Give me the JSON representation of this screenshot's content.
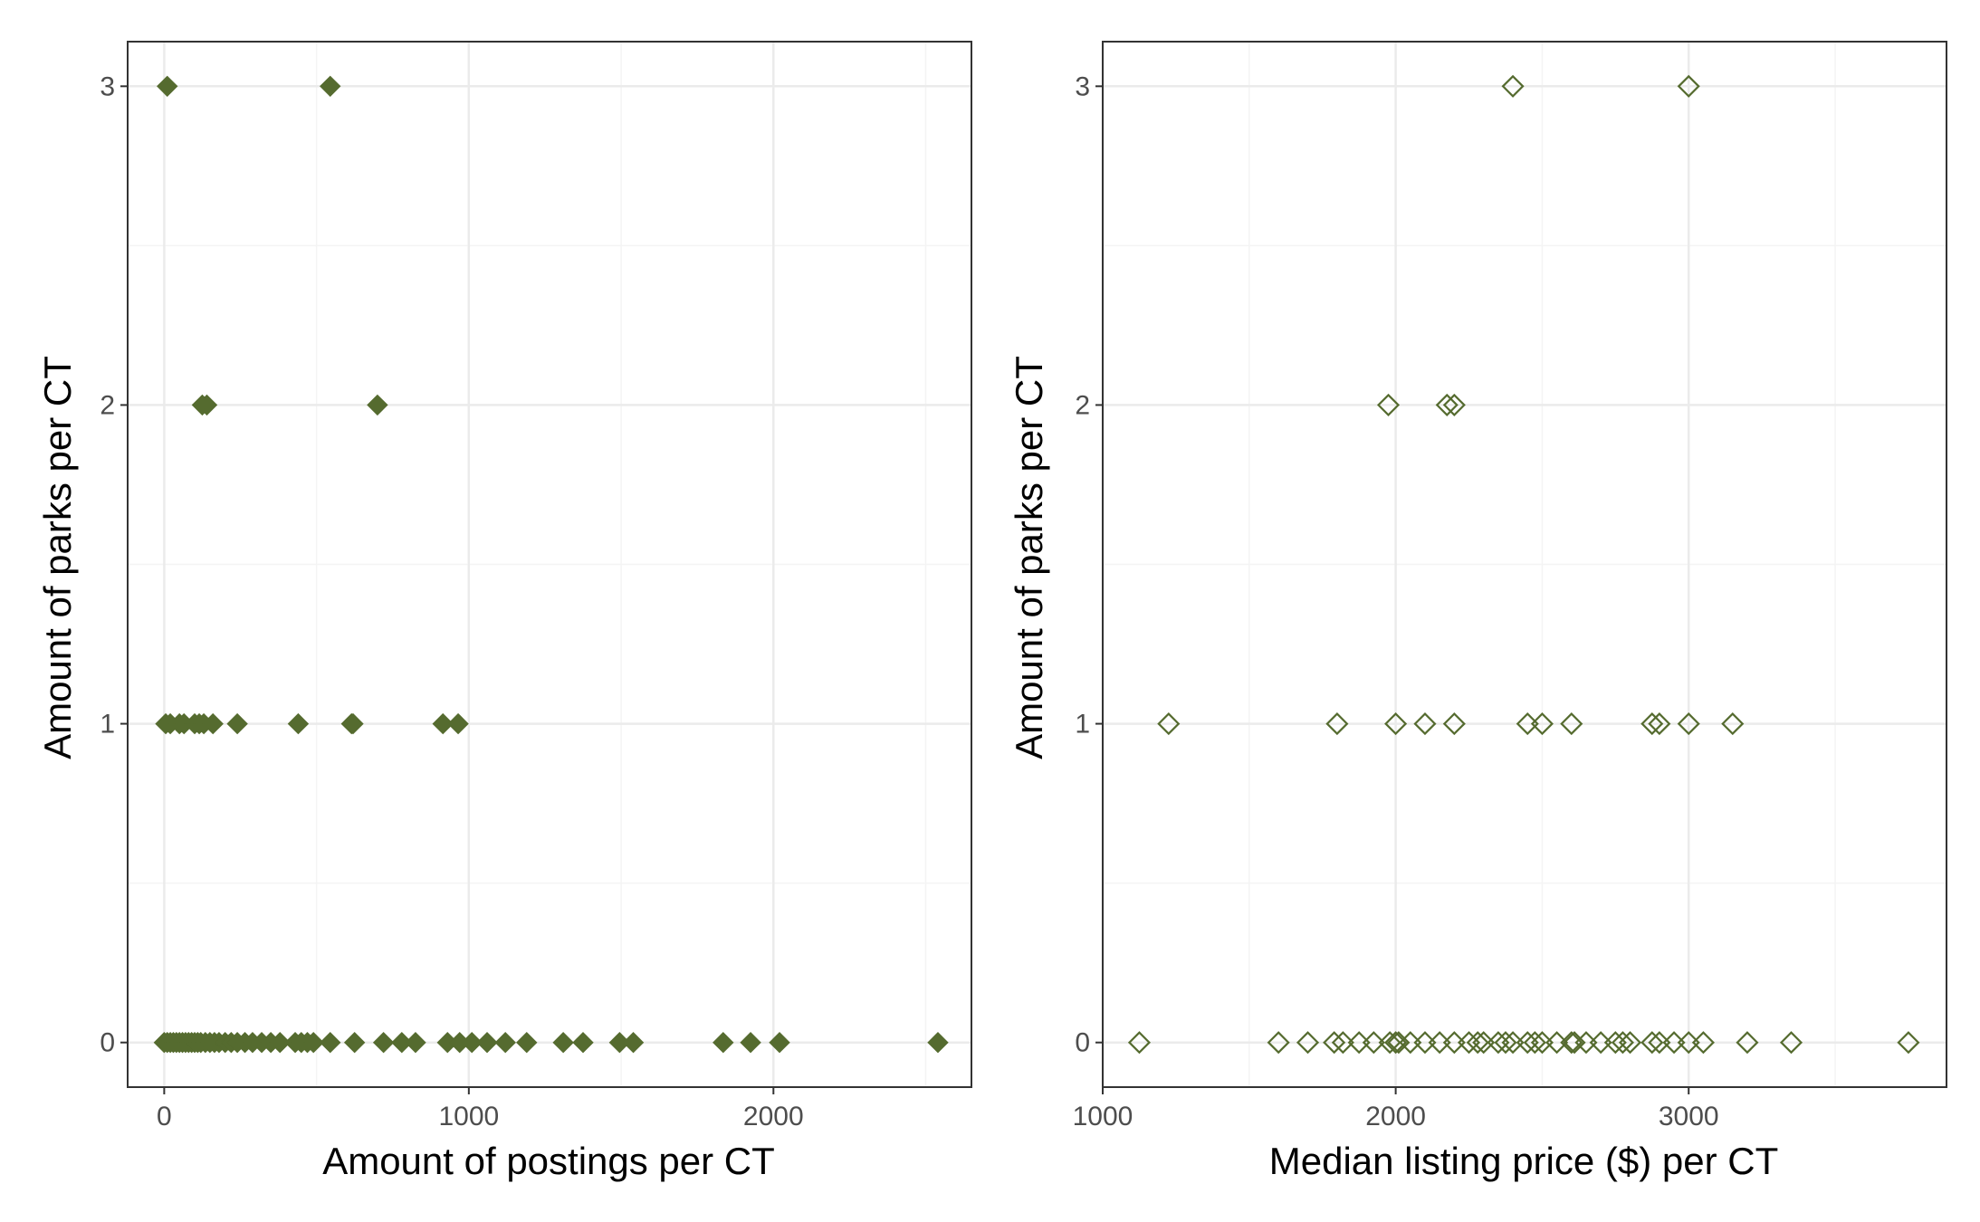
{
  "colors": {
    "point": "#556b2f",
    "grid_major": "#ebebeb",
    "grid_minor": "#f4f4f4",
    "border": "#333333",
    "tick_text": "#4d4d4d"
  },
  "chart_data": [
    {
      "type": "scatter",
      "marker": "filled-diamond",
      "grid": true,
      "xlabel": "Amount of postings per CT",
      "ylabel": "Amount of parks per CT",
      "xlim": [
        -120,
        2650
      ],
      "ylim": [
        -0.14,
        3.14
      ],
      "xticks": [
        0,
        1000,
        2000
      ],
      "xticklabels": [
        "0",
        "1000",
        "2000"
      ],
      "yticks": [
        0,
        1,
        2,
        3
      ],
      "yticklabels": [
        "0",
        "1",
        "2",
        "3"
      ],
      "points": [
        [
          10,
          3
        ],
        [
          545,
          3
        ],
        [
          125,
          2
        ],
        [
          140,
          2
        ],
        [
          700,
          2
        ],
        [
          5,
          1
        ],
        [
          20,
          1
        ],
        [
          50,
          1
        ],
        [
          65,
          1
        ],
        [
          100,
          1
        ],
        [
          115,
          1
        ],
        [
          130,
          1
        ],
        [
          160,
          1
        ],
        [
          240,
          1
        ],
        [
          440,
          1
        ],
        [
          615,
          1
        ],
        [
          620,
          1
        ],
        [
          915,
          1
        ],
        [
          965,
          1
        ],
        [
          0,
          0
        ],
        [
          10,
          0
        ],
        [
          20,
          0
        ],
        [
          30,
          0
        ],
        [
          40,
          0
        ],
        [
          50,
          0
        ],
        [
          60,
          0
        ],
        [
          70,
          0
        ],
        [
          80,
          0
        ],
        [
          90,
          0
        ],
        [
          100,
          0
        ],
        [
          110,
          0
        ],
        [
          120,
          0
        ],
        [
          135,
          0
        ],
        [
          150,
          0
        ],
        [
          165,
          0
        ],
        [
          180,
          0
        ],
        [
          200,
          0
        ],
        [
          220,
          0
        ],
        [
          240,
          0
        ],
        [
          265,
          0
        ],
        [
          290,
          0
        ],
        [
          320,
          0
        ],
        [
          350,
          0
        ],
        [
          380,
          0
        ],
        [
          430,
          0
        ],
        [
          450,
          0
        ],
        [
          470,
          0
        ],
        [
          490,
          0
        ],
        [
          545,
          0
        ],
        [
          625,
          0
        ],
        [
          720,
          0
        ],
        [
          780,
          0
        ],
        [
          825,
          0
        ],
        [
          930,
          0
        ],
        [
          970,
          0
        ],
        [
          1010,
          0
        ],
        [
          1060,
          0
        ],
        [
          1120,
          0
        ],
        [
          1190,
          0
        ],
        [
          1310,
          0
        ],
        [
          1375,
          0
        ],
        [
          1495,
          0
        ],
        [
          1540,
          0
        ],
        [
          1835,
          0
        ],
        [
          1925,
          0
        ],
        [
          2020,
          0
        ],
        [
          2540,
          0
        ]
      ]
    },
    {
      "type": "scatter",
      "marker": "open-diamond",
      "grid": true,
      "xlabel": "Median listing price ($) per CT",
      "ylabel": "Amount of parks per CT",
      "xlim": [
        1000,
        3880
      ],
      "ylim": [
        -0.14,
        3.14
      ],
      "xticks": [
        1000,
        2000,
        3000
      ],
      "xticklabels": [
        "1000",
        "2000",
        "3000"
      ],
      "yticks": [
        0,
        1,
        2,
        3
      ],
      "yticklabels": [
        "0",
        "1",
        "2",
        "3"
      ],
      "points": [
        [
          2400,
          3
        ],
        [
          3000,
          3
        ],
        [
          1975,
          2
        ],
        [
          2175,
          2
        ],
        [
          2200,
          2
        ],
        [
          1225,
          1
        ],
        [
          1800,
          1
        ],
        [
          2000,
          1
        ],
        [
          2100,
          1
        ],
        [
          2200,
          1
        ],
        [
          2450,
          1
        ],
        [
          2500,
          1
        ],
        [
          2600,
          1
        ],
        [
          2875,
          1
        ],
        [
          2900,
          1
        ],
        [
          3000,
          1
        ],
        [
          3150,
          1
        ],
        [
          1125,
          0
        ],
        [
          1600,
          0
        ],
        [
          1700,
          0
        ],
        [
          1790,
          0
        ],
        [
          1820,
          0
        ],
        [
          1875,
          0
        ],
        [
          1925,
          0
        ],
        [
          1980,
          0
        ],
        [
          2000,
          0
        ],
        [
          2010,
          0
        ],
        [
          2050,
          0
        ],
        [
          2100,
          0
        ],
        [
          2150,
          0
        ],
        [
          2200,
          0
        ],
        [
          2250,
          0
        ],
        [
          2280,
          0
        ],
        [
          2300,
          0
        ],
        [
          2350,
          0
        ],
        [
          2375,
          0
        ],
        [
          2400,
          0
        ],
        [
          2450,
          0
        ],
        [
          2475,
          0
        ],
        [
          2500,
          0
        ],
        [
          2550,
          0
        ],
        [
          2600,
          0
        ],
        [
          2610,
          0
        ],
        [
          2650,
          0
        ],
        [
          2700,
          0
        ],
        [
          2750,
          0
        ],
        [
          2775,
          0
        ],
        [
          2800,
          0
        ],
        [
          2875,
          0
        ],
        [
          2900,
          0
        ],
        [
          2950,
          0
        ],
        [
          3000,
          0
        ],
        [
          3050,
          0
        ],
        [
          3200,
          0
        ],
        [
          3350,
          0
        ],
        [
          3750,
          0
        ]
      ]
    }
  ]
}
